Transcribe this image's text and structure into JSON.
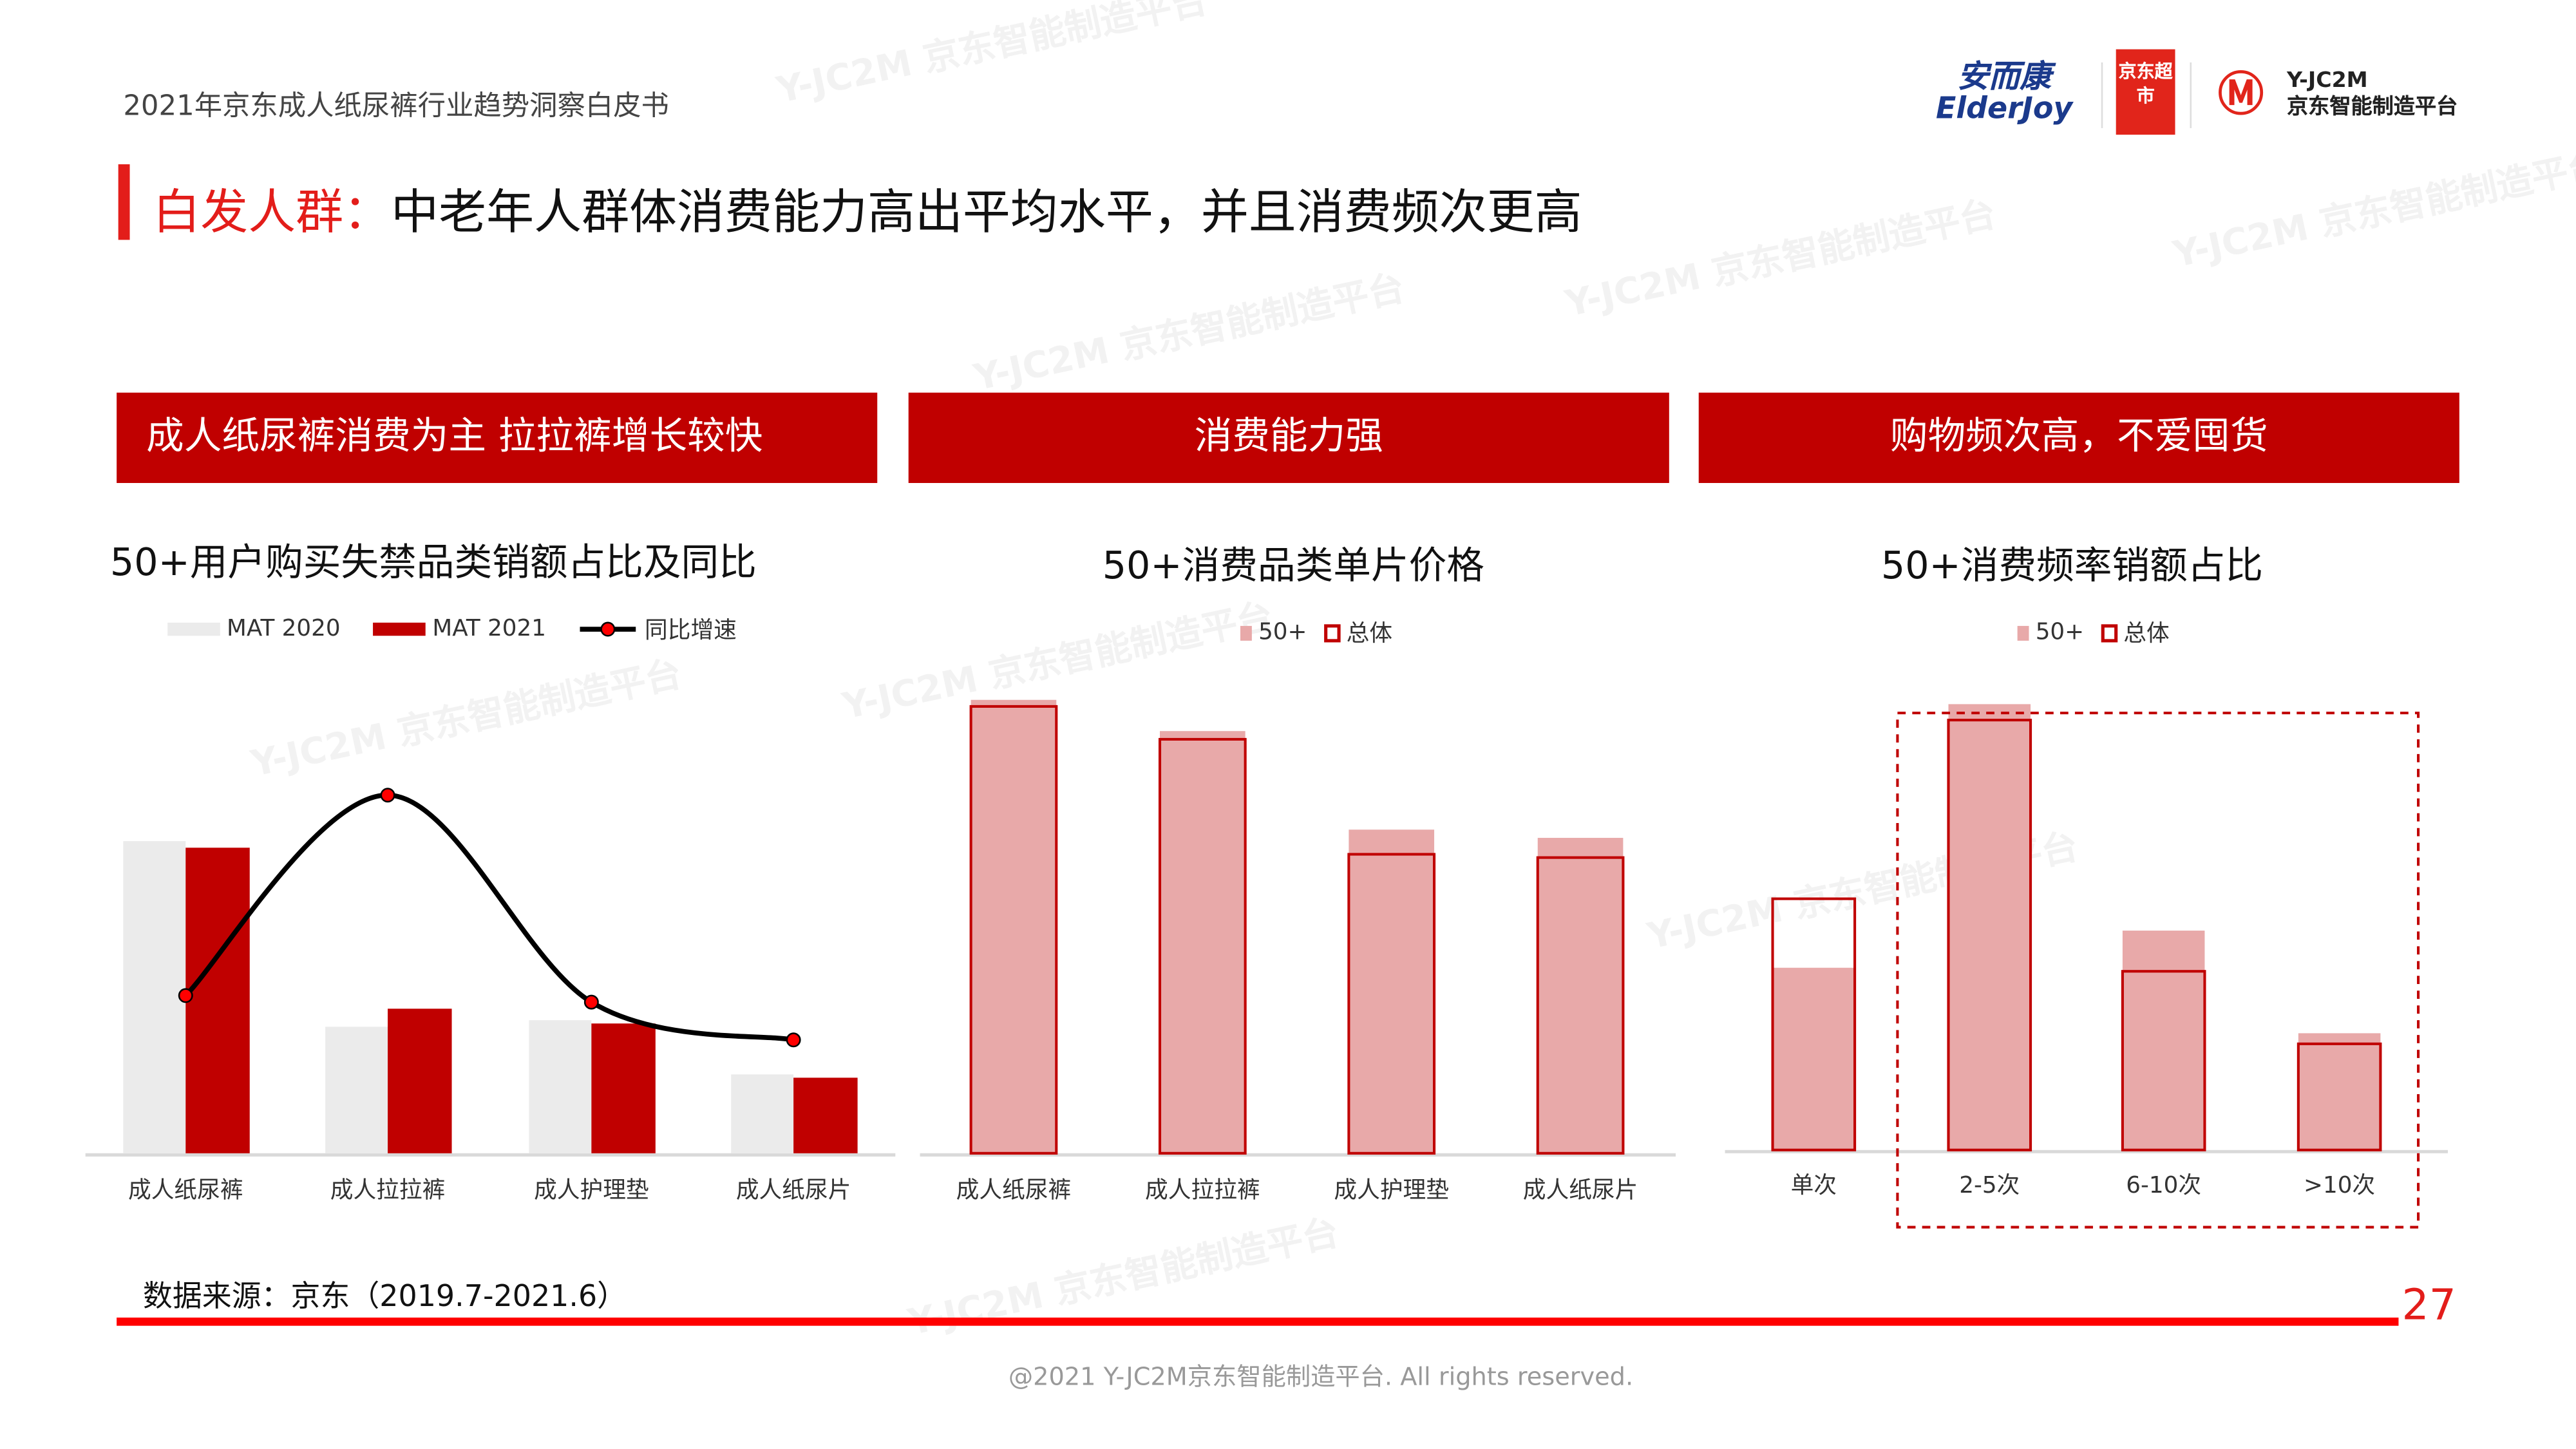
{
  "header": {
    "doc_title": "2021年京东成人纸尿裤行业趋势洞察白皮书",
    "logos": {
      "elderjoy_cn": "安而康",
      "elderjoy_en": "ElderJoy",
      "jd_supermarket": "京东超市",
      "yjc2m_en": "Y-JC2M",
      "yjc2m_cn": "京东智能制造平台"
    }
  },
  "headline": {
    "prefix": "白发人群：",
    "text": "中老年人群体消费能力高出平均水平，并且消费频次更高"
  },
  "banners": [
    "成人纸尿裤消费为主 拉拉裤增长较快",
    "消费能力强",
    "购物频次高，不爱囤货"
  ],
  "watermark": "Y-JC2M 京东智能制造平台",
  "colors": {
    "accent": "#e31d1a",
    "banner": "#c00000",
    "mat2020": "#ebebeb",
    "mat2021": "#c00000",
    "pink": "#e8a9a9",
    "outline": "#c00000"
  },
  "chart_data": [
    {
      "type": "bar",
      "title": "50+用户购买失禁品类销额占比及同比",
      "categories": [
        "成人纸尿裤",
        "成人拉拉裤",
        "成人护理垫",
        "成人纸尿片"
      ],
      "series": [
        {
          "name": "MAT 2020",
          "values": [
            190,
            77,
            81,
            48
          ]
        },
        {
          "name": "MAT 2021",
          "values": [
            186,
            88,
            79,
            46
          ]
        },
        {
          "name": "同比增速",
          "type": "line",
          "values": [
            96,
            218,
            92,
            69
          ]
        }
      ],
      "ylim": [
        0,
        250
      ],
      "grid": false,
      "legend": "top"
    },
    {
      "type": "bar",
      "title": "50+消费品类单片价格",
      "categories": [
        "成人纸尿裤",
        "成人拉拉裤",
        "成人护理垫",
        "成人纸尿片"
      ],
      "series": [
        {
          "name": "50+",
          "values": [
            276,
            257,
            197,
            192
          ]
        },
        {
          "name": "总体",
          "values": [
            272,
            252,
            182,
            180
          ]
        }
      ],
      "ylim": [
        0,
        280
      ],
      "grid": false,
      "legend": "top"
    },
    {
      "type": "bar",
      "title": "50+消费频率销额占比",
      "categories": [
        "单次",
        "2-5次",
        "6-10次",
        ">10次"
      ],
      "series": [
        {
          "name": "50+",
          "values": [
            103,
            252,
            124,
            66
          ]
        },
        {
          "name": "总体",
          "values": [
            142,
            243,
            101,
            60
          ]
        }
      ],
      "ylim": [
        0,
        260
      ],
      "grid": false,
      "legend": "top",
      "highlight": [
        "2-5次",
        "6-10次",
        ">10次"
      ]
    }
  ],
  "footer": {
    "source": "数据来源：京东（2019.7-2021.6）",
    "page": "27",
    "copyright": "@2021 Y-JC2M京东智能制造平台. All rights reserved."
  }
}
